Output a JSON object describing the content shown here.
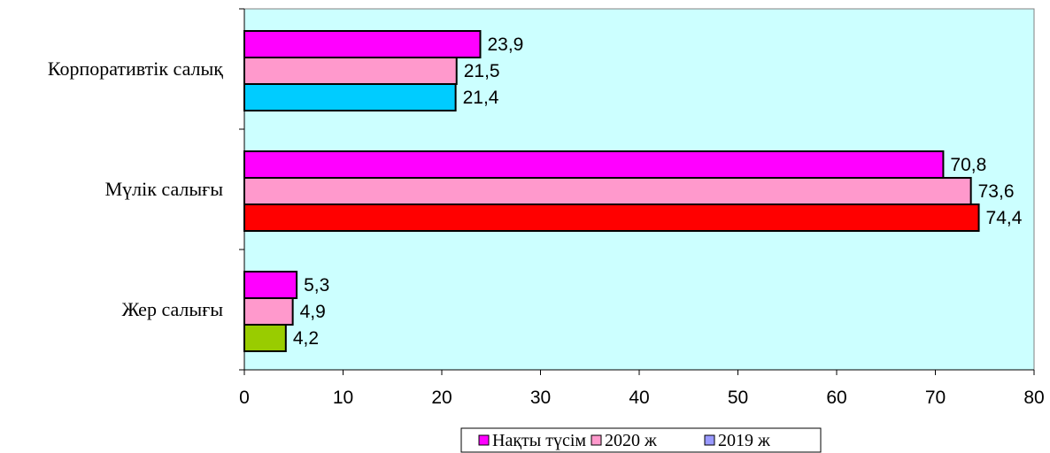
{
  "chart_data": {
    "type": "bar",
    "orientation": "horizontal",
    "categories": [
      "Корпоративтік салық",
      "Мүлік салығы",
      "Жер салығы"
    ],
    "series": [
      {
        "name": "Нақты түсім",
        "values": [
          23.9,
          70.8,
          5.3
        ],
        "labels": [
          "23,9",
          "70,8",
          "5,3"
        ]
      },
      {
        "name": "2020 ж",
        "values": [
          21.5,
          73.6,
          4.9
        ],
        "labels": [
          "21,5",
          "73,6",
          "4,9"
        ]
      },
      {
        "name": "2019 ж",
        "values": [
          21.4,
          74.4,
          4.2
        ],
        "labels": [
          "21,4",
          "74,4",
          "4,2"
        ]
      }
    ],
    "xlim": [
      0,
      80
    ],
    "x_ticks": [
      "0",
      "10",
      "20",
      "30",
      "40",
      "50",
      "60",
      "70",
      "80"
    ],
    "legend_position": "bottom",
    "colors": {
      "plot_background": "#ccffff",
      "series": [
        "#ff00ff",
        "#ff99cc",
        "#9999ff"
      ],
      "point_overrides": [
        {
          "series": 2,
          "category": 0,
          "color": "#00ccff"
        },
        {
          "series": 2,
          "category": 1,
          "color": "#ff0000"
        },
        {
          "series": 2,
          "category": 2,
          "color": "#99cc00"
        }
      ]
    }
  }
}
